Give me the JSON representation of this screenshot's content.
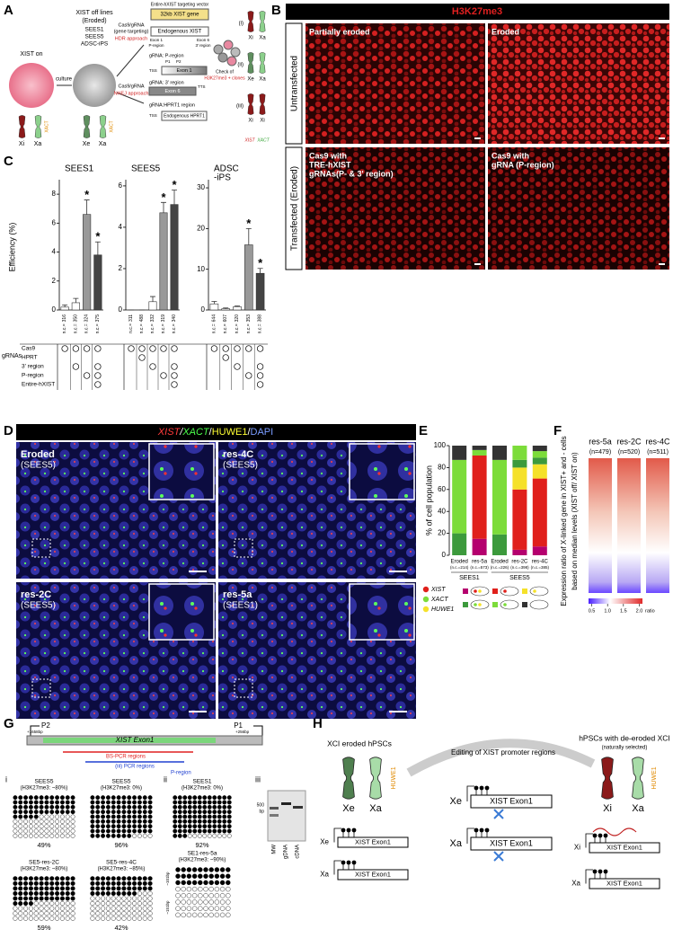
{
  "panel_labels": [
    "A",
    "B",
    "C",
    "D",
    "E",
    "F",
    "G",
    "H"
  ],
  "a": {
    "xist_on": "XIST on",
    "culture": "culture",
    "off_lines": "XIST off lines",
    "eroded": "(Eroded)",
    "lines": [
      "SEES1",
      "SEES5",
      "ADSC-iPS"
    ],
    "hdr": [
      "Cas9/gRNA",
      "(gene targeting)",
      "HDR approach"
    ],
    "nhej": [
      "Cas9/gRNA",
      "NHEJ approach"
    ],
    "vector": "Entire-hXIST targeting vector",
    "gene32": "32kb XIST gene",
    "endo_xist": "Endogenous XIST",
    "exon_labels": [
      "Exon 1",
      "P-region",
      "Exon 6",
      "3' region"
    ],
    "g_p": "gRNA: P-region",
    "g_3": "gRNA: 3' region",
    "g_h": "gRNA:HPRT1 region",
    "endo_hprt": "Endogenous HPRT1",
    "tss": [
      "TSS",
      "TSS"
    ],
    "tts": "TTS",
    "exon1": "Exon 1",
    "exon6": "Exon 6",
    "p1": "P1",
    "p2": "P2",
    "check": [
      "Check of",
      "H3K27me3 + clones"
    ],
    "roman": [
      "(i)",
      "(ii)",
      "(iii)"
    ],
    "chr_left": [
      "Xi",
      "Xa",
      "Xe",
      "Xa"
    ],
    "xact_tags": [
      "XACT",
      "XACT"
    ],
    "chr_right": [
      "Xi",
      "Xa",
      "Xe",
      "Xa",
      "Xi",
      "Xi"
    ],
    "legend": [
      "XIST",
      "XACT"
    ]
  },
  "b": {
    "title": "H3K27me3",
    "rows": [
      "Untransfected",
      "Transfected (Eroded)"
    ],
    "images": [
      [
        "Partially eroded"
      ],
      [
        "Eroded"
      ],
      [
        "Cas9 with",
        "TRE-hXIST",
        "gRNAs(P- & 3' region)"
      ],
      [
        "Cas9 with",
        "gRNA (P-region)"
      ]
    ]
  },
  "c": {
    "y_label": "Efficiency (%)",
    "n_prefix": "n.c.=",
    "row_header": "gRNAs",
    "rows": [
      "Cas9",
      "HPRT",
      "3' region",
      "P-region",
      "Entire-hXIST"
    ],
    "star": "*",
    "charts": [
      {
        "type": "bar",
        "title": [
          "SEES1"
        ],
        "ylim": [
          0,
          9
        ],
        "yticks": [
          0,
          2,
          4,
          6,
          8
        ],
        "values": [
          0.2,
          0.5,
          6.6,
          3.8
        ],
        "errors": [
          0.15,
          0.3,
          1.0,
          0.9
        ],
        "n": [
          316,
          350,
          324,
          375
        ],
        "colors": [
          "#ffffff",
          "#ffffff",
          "#999999",
          "#444444"
        ],
        "significant": [
          2,
          3
        ],
        "sets": [
          [
            true,
            false,
            false,
            false,
            false
          ],
          [
            true,
            false,
            true,
            false,
            false
          ],
          [
            true,
            false,
            false,
            true,
            false
          ],
          [
            true,
            false,
            true,
            true,
            true
          ]
        ]
      },
      {
        "type": "bar",
        "title": [
          "SEES5"
        ],
        "ylim": [
          0,
          6.3
        ],
        "yticks": [
          0,
          2,
          4,
          6
        ],
        "values": [
          0,
          0,
          0.4,
          4.7,
          5.1
        ],
        "errors": [
          0,
          0,
          0.25,
          0.5,
          0.7
        ],
        "n": [
          311,
          488,
          332,
          319,
          340
        ],
        "colors": [
          "#ffffff",
          "#ffffff",
          "#ffffff",
          "#999999",
          "#444444"
        ],
        "significant": [
          3,
          4
        ],
        "sets": [
          [
            true,
            false,
            false,
            false,
            false
          ],
          [
            true,
            true,
            false,
            false,
            false
          ],
          [
            true,
            false,
            true,
            false,
            false
          ],
          [
            true,
            false,
            false,
            true,
            false
          ],
          [
            true,
            false,
            true,
            true,
            true
          ]
        ]
      },
      {
        "type": "bar",
        "title": [
          "ADSC",
          "-iPS"
        ],
        "ylim": [
          0,
          32
        ],
        "yticks": [
          0,
          10,
          20,
          30
        ],
        "values": [
          1.5,
          0.3,
          0.8,
          16,
          9
        ],
        "errors": [
          0.6,
          0.2,
          0.2,
          4,
          1.2
        ],
        "n": [
          644,
          607,
          320,
          353,
          388
        ],
        "colors": [
          "#ffffff",
          "#ffffff",
          "#ffffff",
          "#999999",
          "#444444"
        ],
        "significant": [
          3,
          4
        ],
        "sets": [
          [
            true,
            false,
            false,
            false,
            false
          ],
          [
            true,
            true,
            false,
            false,
            false
          ],
          [
            true,
            false,
            true,
            false,
            false
          ],
          [
            true,
            false,
            false,
            true,
            false
          ],
          [
            true,
            false,
            true,
            true,
            true
          ]
        ]
      }
    ]
  },
  "d": {
    "header": [
      "XIST",
      "/",
      "XACT",
      "/",
      "HUWE1",
      "/",
      "DAPI"
    ],
    "header_colors": [
      "#ff3b3b",
      "#ffffff",
      "#4cff4c",
      "#ffffff",
      "#ffff33",
      "#ffffff",
      "#7a9cff"
    ],
    "images": [
      [
        "Eroded",
        "(SEES5)"
      ],
      [
        "res-4C",
        "(SEES5)"
      ],
      [
        "res-2C",
        "(SEES5)"
      ],
      [
        "res-5a",
        "(SEES1)"
      ]
    ]
  },
  "e": {
    "type": "bar",
    "stacked": true,
    "y_label": "% of cell population",
    "ylim": [
      0,
      100
    ],
    "yticks": [
      0,
      20,
      40,
      60,
      80,
      100
    ],
    "categories": [
      "Eroded",
      "res-5a",
      "Eroded",
      "res-2C",
      "res-4C"
    ],
    "n_labels": [
      "(n.c.=214)",
      "(n.c.=573)",
      "(n.c.=226)",
      "(n.c.=398)",
      "(n.c.=385)"
    ],
    "groups": [
      "SEES1",
      "SEES5"
    ],
    "group_sizes": [
      2,
      3
    ],
    "series": [
      {
        "color": "#b5006e",
        "values": [
          0,
          15,
          0,
          5,
          8
        ],
        "markers": [
          "#e0201b",
          "#f5e12a"
        ]
      },
      {
        "color": "#e0201b",
        "values": [
          0,
          76,
          0,
          55,
          62
        ],
        "markers": [
          "#e0201b"
        ]
      },
      {
        "color": "#f5e12a",
        "values": [
          0,
          0,
          0,
          20,
          13
        ],
        "markers": [
          "#f5e12a"
        ]
      },
      {
        "color": "#3c9a3c",
        "values": [
          20,
          0,
          19,
          7,
          6
        ],
        "markers": [
          "#7cdc3a",
          "#f5e12a"
        ]
      },
      {
        "color": "#7cdc3a",
        "values": [
          67,
          5,
          68,
          13,
          6
        ],
        "markers": [
          "#7cdc3a"
        ]
      },
      {
        "color": "#333333",
        "values": [
          13,
          4,
          13,
          0,
          5
        ],
        "markers": []
      }
    ],
    "legend": [
      {
        "text": "XIST",
        "color": "#e0201b"
      },
      {
        "text": "XACT",
        "color": "#7cdc3a"
      },
      {
        "text": "HUWE1",
        "color": "#f5e12a"
      }
    ]
  },
  "f": {
    "y_label": [
      "Expression ratio of X-linked gene in XIST+ and - cells",
      "based on median levels (XIST off/ XIST on)"
    ],
    "bars": [
      "res-5a",
      "res-2C",
      "res-4C"
    ],
    "n_labels": [
      "(n=479)",
      "(n=520)",
      "(n=511)"
    ],
    "clim": [
      0.4,
      2.1
    ],
    "cticks": [
      0.5,
      {
        "value": 1,
        "label": "1.0"
      },
      1.5,
      {
        "value": 2,
        "label": "2.0"
      }
    ],
    "c_label": "ratio"
  },
  "g": {
    "p2": "P2",
    "p1": "P1",
    "pos_left": "+1658bp",
    "pos_right": "+256bp",
    "exon": "XIST Exon1",
    "bs_pcr": "BS-PCR regions",
    "pcr": "(iii) PCR regions",
    "p_region": "P-region",
    "roman": [
      "i",
      "ii",
      "iii"
    ],
    "samples": [
      {
        "name": "SEES5",
        "h3": "(H3K27me3: ~80%)",
        "percent": 49,
        "label": "49%"
      },
      {
        "name": "SEES5",
        "h3": "(H3K27me3: 0%)",
        "percent": 96,
        "label": "96%"
      },
      {
        "name": "SEES1",
        "h3": "(H3K27me3: 0%)",
        "percent": 92,
        "label": "92%"
      },
      {
        "name": "SE5-res-2C",
        "h3": "(H3K27me3: ~80%)",
        "percent": 59,
        "label": "59%"
      },
      {
        "name": "SE5-res-4C",
        "h3": "(H3K27me3: ~85%)",
        "percent": 42,
        "label": "42%"
      }
    ],
    "res5a": {
      "name": "SE1-res-5a",
      "h3": "(H3K27me3: ~90%)",
      "bp": [
        "~101bp",
        "~151bp"
      ]
    },
    "gel": {
      "marker": "500",
      "unit": "bp",
      "lanes": [
        "MW",
        "gDNA",
        "cDNA"
      ]
    }
  },
  "h": {
    "left_title": "XCI eroded hPSCs",
    "mid_title": "Editing of XIST promoter regions",
    "right_title": [
      "hPSCs with de-eroded XCI",
      "(naturally selected)"
    ],
    "huwe": [
      "HUWE1",
      "HUWE1"
    ],
    "chr": [
      "Xe",
      "Xa",
      "Xi",
      "Xa"
    ],
    "diag_labels": [
      "Xe",
      "Xa",
      "Xe",
      "Xa",
      "Xi",
      "Xa"
    ],
    "exon": [
      "XIST Exon1",
      "XIST Exon1",
      "XIST Exon1",
      "XIST Exon1",
      "XIST Exon1",
      "XIST Exon1"
    ]
  }
}
